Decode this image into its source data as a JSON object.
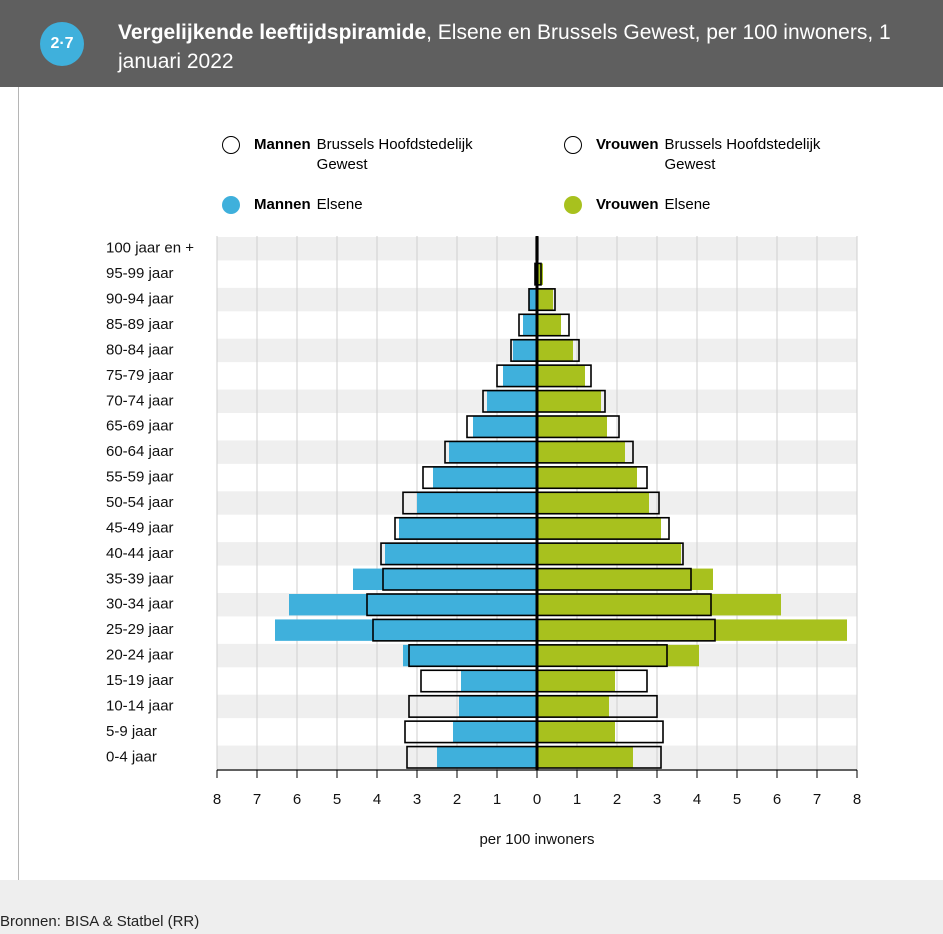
{
  "badge": "2·7",
  "chart_data": {
    "type": "pyramid",
    "title": "Vergelijkende leeftijdspiramide",
    "subtitle": ", Elsene en Brussels Gewest, per 100 inwoners, 1 januari 2022",
    "x_label": "per 100 inwoners",
    "categories": [
      "100 jaar en +",
      "95-99 jaar",
      "90-94 jaar",
      "85-89 jaar",
      "80-84 jaar",
      "75-79 jaar",
      "70-74 jaar",
      "65-69 jaar",
      "60-64 jaar",
      "55-59 jaar",
      "50-54 jaar",
      "45-49 jaar",
      "40-44 jaar",
      "35-39 jaar",
      "30-34 jaar",
      "25-29 jaar",
      "20-24 jaar",
      "15-19 jaar",
      "10-14 jaar",
      "5-9 jaar",
      "0-4 jaar"
    ],
    "series": [
      {
        "name": "Mannen",
        "group": "Brussels Hoofdstedelijk Gewest",
        "style": "outline",
        "color": "#000000",
        "values": [
          -0.02,
          -0.05,
          -0.2,
          -0.45,
          -0.65,
          -1.0,
          -1.35,
          -1.75,
          -2.3,
          -2.85,
          -3.35,
          -3.55,
          -3.9,
          -3.85,
          -4.25,
          -4.1,
          -3.2,
          -2.9,
          -3.2,
          -3.3,
          -3.25
        ]
      },
      {
        "name": "Vrouwen",
        "group": "Brussels Hoofdstedelijk Gewest",
        "style": "outline",
        "color": "#000000",
        "values": [
          0.02,
          0.1,
          0.45,
          0.8,
          1.05,
          1.35,
          1.7,
          2.05,
          2.4,
          2.75,
          3.05,
          3.3,
          3.65,
          3.85,
          4.35,
          4.45,
          3.25,
          2.75,
          3.0,
          3.15,
          3.1
        ]
      },
      {
        "name": "Mannen",
        "group": "Elsene",
        "style": "filled",
        "color": "#3fb0dc",
        "values": [
          -0.01,
          -0.05,
          -0.2,
          -0.35,
          -0.6,
          -0.85,
          -1.25,
          -1.6,
          -2.2,
          -2.6,
          -3.0,
          -3.45,
          -3.8,
          -4.6,
          -6.2,
          -6.55,
          -3.35,
          -1.9,
          -1.95,
          -2.1,
          -2.5
        ]
      },
      {
        "name": "Vrouwen",
        "group": "Elsene",
        "style": "filled",
        "color": "#a8c11e",
        "values": [
          0.02,
          0.15,
          0.4,
          0.6,
          0.9,
          1.2,
          1.6,
          1.75,
          2.2,
          2.5,
          2.8,
          3.1,
          3.6,
          4.4,
          6.1,
          7.75,
          4.05,
          1.95,
          1.8,
          1.95,
          2.4
        ]
      }
    ],
    "xlim": [
      -8,
      8
    ],
    "xticks": [
      {
        "value": -8,
        "label": "8"
      },
      {
        "value": -7,
        "label": "7"
      },
      {
        "value": -6,
        "label": "6"
      },
      {
        "value": -5,
        "label": "5"
      },
      {
        "value": -4,
        "label": "4"
      },
      {
        "value": -3,
        "label": "3"
      },
      {
        "value": -2,
        "label": "2"
      },
      {
        "value": -1,
        "label": "1"
      },
      0,
      1,
      2,
      3,
      4,
      5,
      6,
      7,
      8
    ],
    "grid": true
  },
  "source": "Bronnen: BISA & Statbel (RR)"
}
